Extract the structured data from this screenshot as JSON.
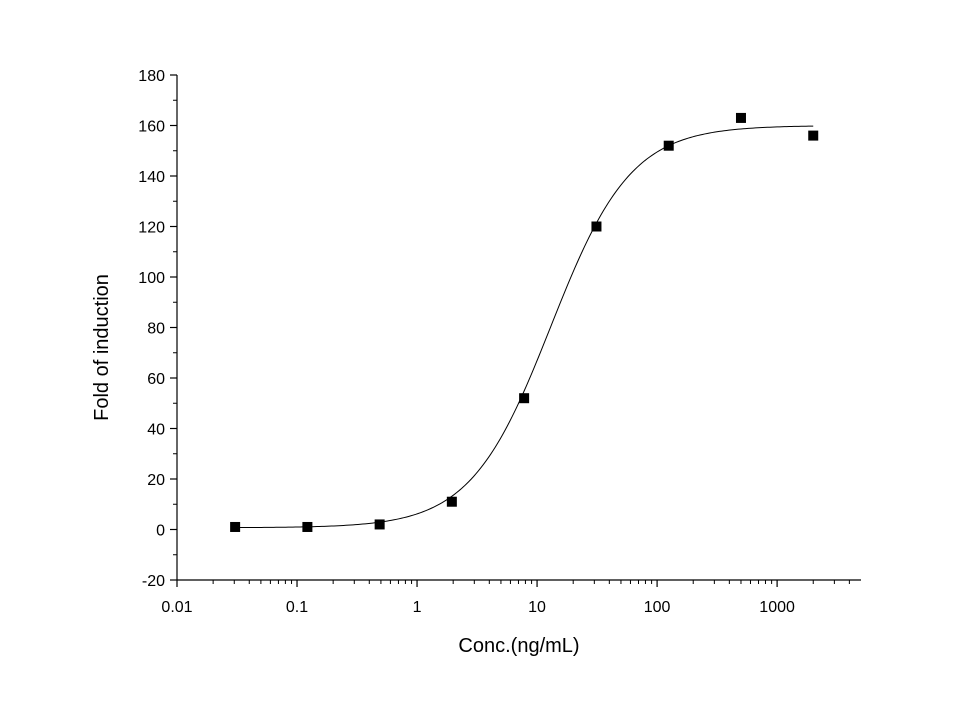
{
  "chart_data": {
    "type": "scatter",
    "xscale": "log",
    "xlabel": "Conc.(ng/mL)",
    "ylabel": "Fold of induction",
    "xlim": [
      0.01,
      5000
    ],
    "ylim": [
      -20,
      180
    ],
    "xticks": [
      {
        "value": 0.01,
        "label": "0.01"
      },
      {
        "value": 0.1,
        "label": "0.1"
      },
      {
        "value": 1,
        "label": "1"
      },
      {
        "value": 10,
        "label": "10"
      },
      {
        "value": 100,
        "label": "100"
      },
      {
        "value": 1000,
        "label": "1000"
      }
    ],
    "yticks": [
      {
        "value": -20,
        "label": "-20"
      },
      {
        "value": 0,
        "label": "0"
      },
      {
        "value": 20,
        "label": "20"
      },
      {
        "value": 40,
        "label": "40"
      },
      {
        "value": 60,
        "label": "60"
      },
      {
        "value": 80,
        "label": "80"
      },
      {
        "value": 100,
        "label": "100"
      },
      {
        "value": 120,
        "label": "120"
      },
      {
        "value": 140,
        "label": "140"
      },
      {
        "value": 160,
        "label": "160"
      },
      {
        "value": 180,
        "label": "180"
      }
    ],
    "grid": false,
    "series": [
      {
        "points": [
          {
            "x": 0.0305,
            "y": 1
          },
          {
            "x": 0.122,
            "y": 1
          },
          {
            "x": 0.488,
            "y": 2
          },
          {
            "x": 1.95,
            "y": 11
          },
          {
            "x": 7.8,
            "y": 52
          },
          {
            "x": 31.25,
            "y": 120
          },
          {
            "x": 125,
            "y": 152
          },
          {
            "x": 500,
            "y": 163
          },
          {
            "x": 2000,
            "y": 156
          }
        ]
      }
    ],
    "fit_curve": {
      "model": "4PL",
      "bottom": 0.7,
      "top": 160,
      "ec50": 13,
      "hill": 1.3,
      "x_range": [
        0.0305,
        2000
      ]
    }
  }
}
